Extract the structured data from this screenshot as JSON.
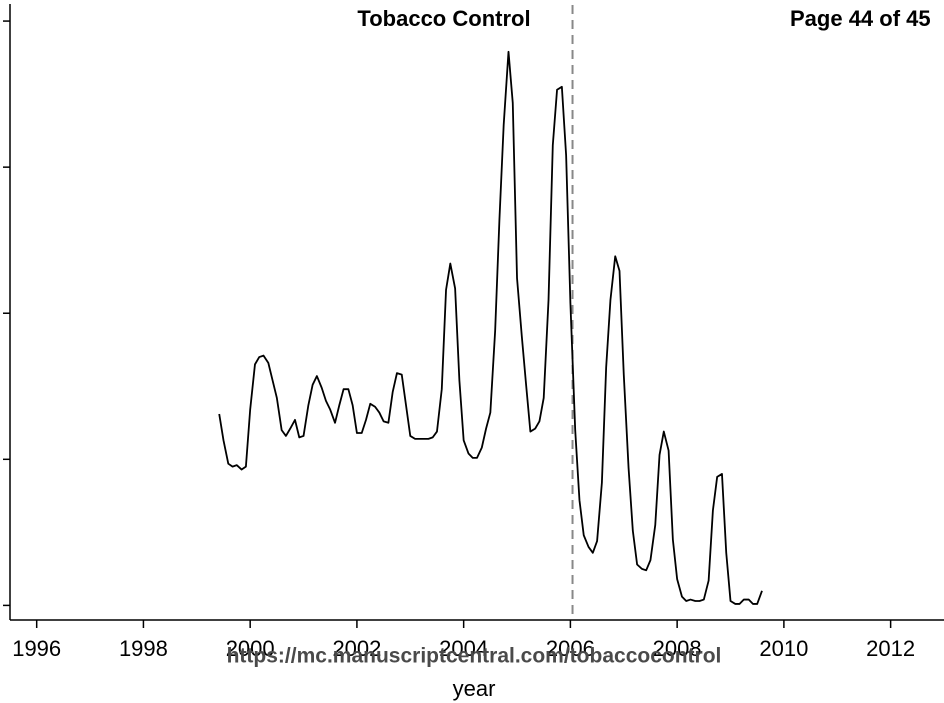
{
  "header": {
    "journal": "Tobacco Control",
    "page": "Page 44 of 45"
  },
  "watermark": "https://mc.manuscriptcentral.com/tobaccocontrol",
  "chart_data": {
    "type": "line",
    "x_label": "year",
    "xlim": [
      1995.5,
      2013.0
    ],
    "xticks": [
      1996,
      1998,
      2000,
      2002,
      2004,
      2006,
      2008,
      2010,
      2012
    ],
    "ylim": [
      -0.1,
      4.11
    ],
    "yticks": [
      0,
      1,
      2,
      3,
      4
    ],
    "vline": 2006.04,
    "x": [
      1999.42,
      1999.5,
      1999.59,
      1999.67,
      1999.75,
      1999.84,
      1999.92,
      2000.0,
      2000.09,
      2000.17,
      2000.25,
      2000.34,
      2000.42,
      2000.5,
      2000.59,
      2000.67,
      2000.75,
      2000.84,
      2000.92,
      2001.0,
      2001.09,
      2001.17,
      2001.25,
      2001.34,
      2001.42,
      2001.5,
      2001.59,
      2001.67,
      2001.75,
      2001.84,
      2001.92,
      2002.0,
      2002.09,
      2002.17,
      2002.25,
      2002.34,
      2002.42,
      2002.5,
      2002.59,
      2002.67,
      2002.75,
      2002.84,
      2002.92,
      2003.0,
      2003.09,
      2003.17,
      2003.25,
      2003.34,
      2003.42,
      2003.5,
      2003.59,
      2003.67,
      2003.75,
      2003.84,
      2003.92,
      2004.0,
      2004.09,
      2004.17,
      2004.25,
      2004.34,
      2004.42,
      2004.5,
      2004.59,
      2004.67,
      2004.75,
      2004.84,
      2004.92,
      2005.0,
      2005.09,
      2005.17,
      2005.25,
      2005.34,
      2005.42,
      2005.5,
      2005.59,
      2005.67,
      2005.75,
      2005.84,
      2005.92,
      2006.0,
      2006.09,
      2006.17,
      2006.25,
      2006.34,
      2006.42,
      2006.5,
      2006.59,
      2006.67,
      2006.75,
      2006.84,
      2006.92,
      2007.0,
      2007.09,
      2007.17,
      2007.25,
      2007.34,
      2007.42,
      2007.5,
      2007.59,
      2007.67,
      2007.75,
      2007.84,
      2007.92,
      2008.0,
      2008.09,
      2008.17,
      2008.25,
      2008.34,
      2008.42,
      2008.5,
      2008.59,
      2008.67,
      2008.75,
      2008.84,
      2008.92,
      2009.0,
      2009.09,
      2009.17,
      2009.25,
      2009.34,
      2009.42,
      2009.5,
      2009.59
    ],
    "series": [
      {
        "color": "#000000",
        "values": [
          1.31,
          1.13,
          0.97,
          0.95,
          0.96,
          0.93,
          0.95,
          1.34,
          1.65,
          1.7,
          1.71,
          1.66,
          1.54,
          1.42,
          1.2,
          1.16,
          1.21,
          1.27,
          1.15,
          1.16,
          1.37,
          1.51,
          1.57,
          1.49,
          1.4,
          1.34,
          1.25,
          1.37,
          1.48,
          1.48,
          1.37,
          1.18,
          1.18,
          1.27,
          1.38,
          1.36,
          1.32,
          1.26,
          1.25,
          1.46,
          1.59,
          1.58,
          1.37,
          1.16,
          1.14,
          1.14,
          1.14,
          1.14,
          1.15,
          1.19,
          1.48,
          2.16,
          2.34,
          2.17,
          1.54,
          1.13,
          1.04,
          1.01,
          1.01,
          1.08,
          1.21,
          1.32,
          1.88,
          2.64,
          3.29,
          3.79,
          3.44,
          2.24,
          1.84,
          1.51,
          1.19,
          1.21,
          1.26,
          1.42,
          2.09,
          3.15,
          3.53,
          3.55,
          3.08,
          2.07,
          1.2,
          0.72,
          0.48,
          0.4,
          0.36,
          0.44,
          0.84,
          1.63,
          2.09,
          2.39,
          2.29,
          1.58,
          0.94,
          0.51,
          0.28,
          0.25,
          0.24,
          0.31,
          0.55,
          1.03,
          1.19,
          1.06,
          0.45,
          0.18,
          0.06,
          0.03,
          0.04,
          0.03,
          0.03,
          0.04,
          0.17,
          0.65,
          0.88,
          0.9,
          0.36,
          0.03,
          0.01,
          0.01,
          0.04,
          0.04,
          0.01,
          0.01,
          0.1
        ]
      }
    ]
  }
}
